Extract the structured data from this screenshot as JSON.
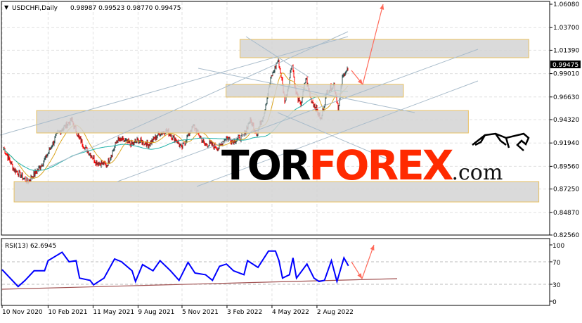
{
  "header": {
    "symbol": "USDCHFi,Daily",
    "ohlc": "0.98987 0.99523 0.98770 0.99475",
    "menu_icon": "triangle-down-icon"
  },
  "logo": {
    "text": "TORFOREX.com",
    "part1": "TOR",
    "part2": "FOREX",
    "part3": ".com",
    "icon": "bull-icon"
  },
  "colors": {
    "bull": "#2f4f4f",
    "bear": "#ff0000",
    "ma_fast": "#daa520",
    "ma_slow": "#20b2aa",
    "rsi": "#0000ff",
    "zone_border": "#e8c060",
    "zone_fill": "#d3d3d3",
    "trendline": "#a9bccb",
    "arrow": "#ff6a5a",
    "logo_red": "#ff2a00"
  },
  "chart_data": [
    {
      "type": "candlestick",
      "title": "USDCHFi,Daily",
      "y_ticks": [
        "1.06080",
        "1.03700",
        "1.01390",
        "0.99010",
        "0.96630",
        "0.94320",
        "0.91940",
        "0.89560",
        "0.87250",
        "0.84870",
        "0.82560"
      ],
      "ylim": [
        0.8256,
        1.0608
      ],
      "x_ticks": [
        "10 Nov 2020",
        "10 Feb 2021",
        "11 May 2021",
        "9 Aug 2021",
        "5 Nov 2021",
        "3 Feb 2022",
        "4 May 2022",
        "2 Aug 2022"
      ],
      "x_tick_dates": [
        "2020-11-10",
        "2021-02-10",
        "2021-05-11",
        "2021-08-09",
        "2021-11-05",
        "2022-02-03",
        "2022-05-04",
        "2022-08-02"
      ],
      "current_price": "0.99475",
      "grid": true,
      "close_series": [
        [
          "2020-11-12",
          0.915
        ],
        [
          "2020-12-03",
          0.893
        ],
        [
          "2020-12-31",
          0.88
        ],
        [
          "2021-01-22",
          0.893
        ],
        [
          "2021-02-05",
          0.904
        ],
        [
          "2021-03-01",
          0.929
        ],
        [
          "2021-03-29",
          0.943
        ],
        [
          "2021-04-12",
          0.925
        ],
        [
          "2021-04-26",
          0.914
        ],
        [
          "2021-05-17",
          0.9
        ],
        [
          "2021-06-07",
          0.897
        ],
        [
          "2021-06-17",
          0.908
        ],
        [
          "2021-06-28",
          0.922
        ],
        [
          "2021-07-12",
          0.922
        ],
        [
          "2021-07-26",
          0.918
        ],
        [
          "2021-08-09",
          0.922
        ],
        [
          "2021-08-30",
          0.918
        ],
        [
          "2021-09-20",
          0.929
        ],
        [
          "2021-10-04",
          0.932
        ],
        [
          "2021-10-25",
          0.922
        ],
        [
          "2021-11-04",
          0.914
        ],
        [
          "2021-11-22",
          0.932
        ],
        [
          "2021-11-29",
          0.936
        ],
        [
          "2021-12-20",
          0.918
        ],
        [
          "2022-01-03",
          0.918
        ],
        [
          "2022-01-17",
          0.914
        ],
        [
          "2022-01-31",
          0.925
        ],
        [
          "2022-02-14",
          0.922
        ],
        [
          "2022-03-07",
          0.925
        ],
        [
          "2022-03-21",
          0.943
        ],
        [
          "2022-04-04",
          0.929
        ],
        [
          "2022-04-18",
          0.95
        ],
        [
          "2022-05-02",
          0.986
        ],
        [
          "2022-05-16",
          1.004
        ],
        [
          "2022-05-23",
          0.986
        ],
        [
          "2022-05-30",
          0.961
        ],
        [
          "2022-06-06",
          0.979
        ],
        [
          "2022-06-13",
          1.002
        ],
        [
          "2022-06-20",
          0.972
        ],
        [
          "2022-06-30",
          0.957
        ],
        [
          "2022-07-11",
          0.986
        ],
        [
          "2022-07-20",
          0.965
        ],
        [
          "2022-08-01",
          0.954
        ],
        [
          "2022-08-10",
          0.943
        ],
        [
          "2022-08-22",
          0.972
        ],
        [
          "2022-09-05",
          0.979
        ],
        [
          "2022-09-14",
          0.954
        ],
        [
          "2022-09-22",
          0.986
        ],
        [
          "2022-09-28",
          0.993
        ],
        [
          "2022-10-04",
          0.99475
        ]
      ],
      "zones": [
        {
          "low": 1.0063,
          "high": 1.0249,
          "start": "2022-03-01",
          "end": "2023-09-30"
        },
        {
          "low": 0.9662,
          "high": 0.9791,
          "start": "2022-02-01",
          "end": "2023-01-22"
        },
        {
          "low": 0.9296,
          "high": 0.9525,
          "start": "2021-01-18",
          "end": "2023-06-01"
        },
        {
          "low": 0.8593,
          "high": 0.8801,
          "start": "2020-12-04",
          "end": "2023-10-20"
        }
      ]
    },
    {
      "type": "line",
      "title": "RSI(13) 62.6945",
      "label": "RSI(13)",
      "value": "62.6945",
      "y_ticks": [
        "100",
        "70",
        "30",
        "0"
      ],
      "ylim": [
        0,
        100
      ],
      "levels": [
        70,
        30
      ],
      "series": [
        [
          "2020-11-10",
          56
        ],
        [
          "2020-12-12",
          26
        ],
        [
          "2020-12-26",
          37
        ],
        [
          "2021-01-13",
          54
        ],
        [
          "2021-02-03",
          54
        ],
        [
          "2021-02-10",
          72
        ],
        [
          "2021-03-10",
          87
        ],
        [
          "2021-03-24",
          70
        ],
        [
          "2021-04-07",
          72
        ],
        [
          "2021-04-14",
          41
        ],
        [
          "2021-05-05",
          37
        ],
        [
          "2021-05-12",
          29
        ],
        [
          "2021-06-02",
          41
        ],
        [
          "2021-06-23",
          75
        ],
        [
          "2021-07-07",
          70
        ],
        [
          "2021-07-28",
          54
        ],
        [
          "2021-08-04",
          35
        ],
        [
          "2021-08-18",
          65
        ],
        [
          "2021-09-08",
          54
        ],
        [
          "2021-09-22",
          72
        ],
        [
          "2021-10-13",
          54
        ],
        [
          "2021-10-30",
          37
        ],
        [
          "2021-11-17",
          69
        ],
        [
          "2021-12-01",
          50
        ],
        [
          "2021-12-22",
          47
        ],
        [
          "2022-01-05",
          37
        ],
        [
          "2022-01-19",
          62
        ],
        [
          "2022-02-02",
          66
        ],
        [
          "2022-02-16",
          54
        ],
        [
          "2022-03-09",
          47
        ],
        [
          "2022-03-16",
          72
        ],
        [
          "2022-04-06",
          60
        ],
        [
          "2022-04-27",
          89
        ],
        [
          "2022-05-11",
          89
        ],
        [
          "2022-05-18",
          72
        ],
        [
          "2022-05-25",
          41
        ],
        [
          "2022-06-08",
          47
        ],
        [
          "2022-06-15",
          77
        ],
        [
          "2022-06-22",
          41
        ],
        [
          "2022-07-13",
          66
        ],
        [
          "2022-07-27",
          41
        ],
        [
          "2022-08-06",
          35
        ],
        [
          "2022-08-17",
          37
        ],
        [
          "2022-08-31",
          72
        ],
        [
          "2022-09-11",
          35
        ],
        [
          "2022-09-25",
          77
        ],
        [
          "2022-10-04",
          62.7
        ]
      ]
    }
  ]
}
